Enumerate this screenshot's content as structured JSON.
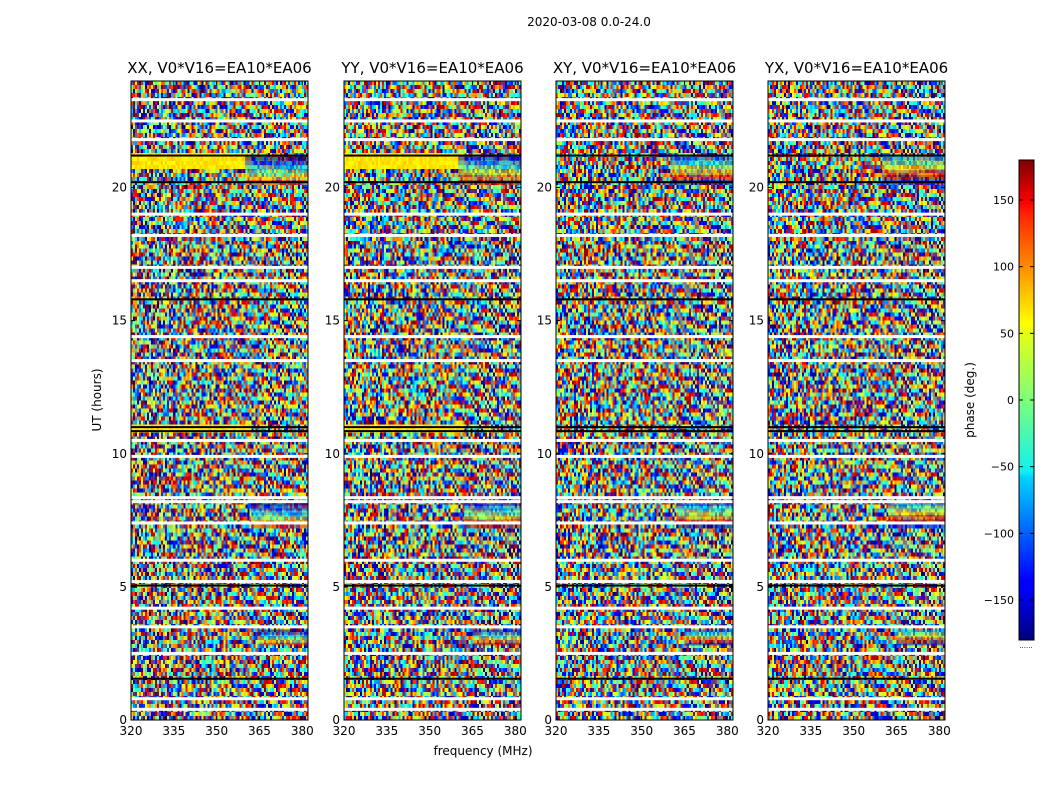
{
  "chart_data": {
    "type": "heatmap",
    "suptitle": "2020-03-08 0.0-24.0",
    "xlabel": "frequency (MHz)",
    "ylabel": "UT (hours)",
    "xlim": [
      320,
      382
    ],
    "ylim": [
      0,
      24
    ],
    "xticks": [
      320,
      335,
      350,
      365,
      380
    ],
    "yticks": [
      0,
      5,
      10,
      15,
      20
    ],
    "colormap": "jet",
    "colorbar": {
      "label": "phase (deg.)",
      "range": [
        -180,
        180
      ],
      "ticks": [
        150,
        100,
        50,
        0,
        -50,
        -100,
        -150
      ],
      "tick_labels": [
        "150",
        "100",
        "50",
        "0",
        "−50",
        "−100",
        "−150"
      ],
      "bottom_label": "......"
    },
    "panels": [
      {
        "title": "XX, V0*V16=EA10*EA06",
        "polarization": "XX"
      },
      {
        "title": "YY, V0*V16=EA10*EA06",
        "polarization": "YY"
      },
      {
        "title": "XY, V0*V16=EA10*EA06",
        "polarization": "XY"
      },
      {
        "title": "YX, V0*V16=EA10*EA06",
        "polarization": "YX"
      }
    ],
    "flagged_white_hours": [
      0.4,
      0.8,
      2.5,
      3.5,
      4.2,
      5.2,
      6.0,
      7.4,
      8.2,
      8.35,
      9.9,
      10.5,
      13.5,
      14.4,
      16.5,
      17.0,
      18.2,
      19.0,
      21.8,
      22.5,
      23.3
    ],
    "flagged_black_hours": [
      1.55,
      5.05,
      10.85,
      11.0,
      15.8,
      20.2,
      21.2
    ],
    "fringe_bursts": [
      {
        "hours": [
          7.2,
          8.2
        ],
        "freq": [
          362,
          382
        ]
      },
      {
        "hours": [
          2.8,
          3.4
        ],
        "freq": [
          365,
          382
        ]
      },
      {
        "hours": [
          20.1,
          21.2
        ],
        "freq": [
          360,
          382
        ]
      }
    ]
  }
}
